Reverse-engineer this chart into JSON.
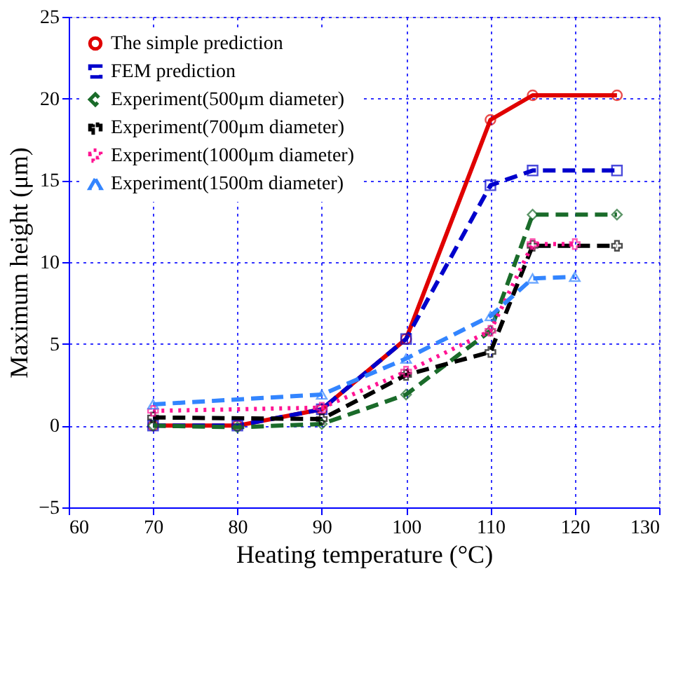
{
  "chart_data": {
    "type": "line",
    "xlabel": "Heating temperature (°C)",
    "ylabel": "Maximum height (μm)",
    "xlim": [
      60,
      130
    ],
    "xticks": [
      60,
      70,
      80,
      90,
      100,
      110,
      120,
      130
    ],
    "ylim": [
      -5,
      25
    ],
    "yticks": [
      -5,
      0,
      5,
      10,
      15,
      20,
      25
    ],
    "grid": true,
    "legend": "top left",
    "series": [
      {
        "name": "The simple prediction",
        "color": "#e00000",
        "line_style": "solid",
        "marker": "circle",
        "x": [
          70,
          80,
          90,
          100,
          110,
          115,
          125
        ],
        "values": [
          0,
          0,
          1.0,
          5.3,
          18.7,
          20.2,
          20.2
        ]
      },
      {
        "name": "FEM prediction",
        "color": "#0000cc",
        "line_style": "dashed",
        "marker": "square",
        "x": [
          70,
          80,
          90,
          100,
          110,
          115,
          125
        ],
        "values": [
          0,
          0,
          1.0,
          5.3,
          14.7,
          15.6,
          15.6
        ]
      },
      {
        "name": "Experiment(500μm diameter)",
        "color": "#1a6b2a",
        "line_style": "dashed",
        "marker": "diamond",
        "x": [
          70,
          80,
          90,
          100,
          110,
          115,
          125
        ],
        "values": [
          0,
          -0.1,
          0.1,
          1.9,
          5.8,
          12.9,
          12.9
        ]
      },
      {
        "name": "Experiment(700μm diameter)",
        "color": "#000000",
        "line_style": "dashed",
        "marker": "cross",
        "x": [
          70,
          90,
          100,
          110,
          115,
          125
        ],
        "values": [
          0.5,
          0.4,
          3.1,
          4.5,
          11.0,
          11.0
        ]
      },
      {
        "name": "Experiment(1000μm diameter)",
        "color": "#ff1493",
        "line_style": "dotted",
        "marker": "cross",
        "x": [
          70,
          90,
          100,
          110,
          115,
          120
        ],
        "values": [
          0.9,
          1.1,
          3.3,
          5.8,
          11.1,
          11.1
        ]
      },
      {
        "name": "Experiment(1500m diameter)",
        "color": "#3385ff",
        "line_style": "dashed",
        "marker": "triangle",
        "x": [
          70,
          90,
          100,
          110,
          115,
          120
        ],
        "values": [
          1.3,
          1.9,
          4.1,
          6.7,
          9.0,
          9.1
        ]
      }
    ]
  }
}
